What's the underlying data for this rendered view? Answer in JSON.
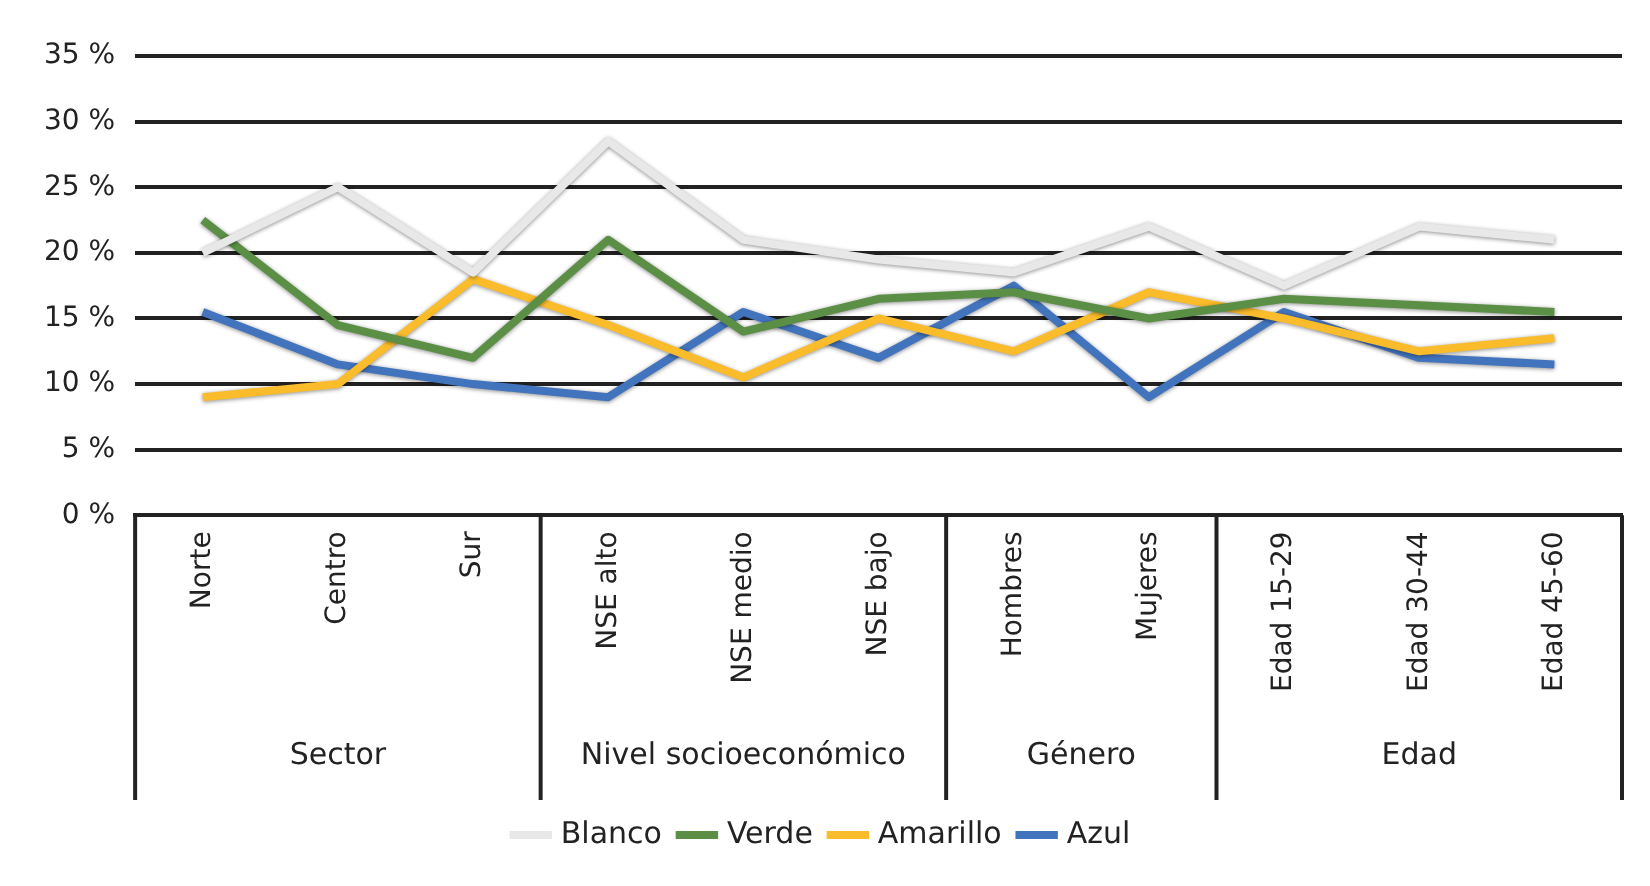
{
  "chart_data": {
    "type": "line",
    "categories": [
      "Norte",
      "Centro",
      "Sur",
      "NSE alto",
      "NSE medio",
      "NSE bajo",
      "Hombres",
      "Mujeres",
      "Edad 15-29",
      "Edad 30-44",
      "Edad 45-60"
    ],
    "annotations": [
      "Sector",
      "Nivel socioeconómico",
      "Género",
      "Edad"
    ],
    "series": [
      {
        "name": "Blanco",
        "color": "#e8e8e8",
        "values": [
          20,
          25,
          18.5,
          28.5,
          21,
          19.5,
          18.5,
          22,
          17.5,
          22,
          21
        ]
      },
      {
        "name": "Verde",
        "color": "#5b8f45",
        "values": [
          22.5,
          14.5,
          12,
          21,
          14,
          16.5,
          17,
          15,
          16.5,
          16,
          15.5
        ]
      },
      {
        "name": "Amarillo",
        "color": "#fbbc2c",
        "values": [
          9,
          10,
          18,
          14.5,
          10.5,
          15,
          12.5,
          17,
          15,
          12.5,
          13.5
        ]
      },
      {
        "name": "Azul",
        "color": "#4274be",
        "values": [
          15.5,
          11.5,
          10,
          9,
          15.5,
          12,
          17.5,
          9,
          15.5,
          12,
          11.5
        ]
      }
    ],
    "ylim": [
      0,
      35
    ],
    "yticks": [
      {
        "value": 0,
        "label": "0 %"
      },
      {
        "value": 5,
        "label": "5 %"
      },
      {
        "value": 10,
        "label": "10 %"
      },
      {
        "value": 15,
        "label": "15 %"
      },
      {
        "value": 20,
        "label": "20 %"
      },
      {
        "value": 25,
        "label": "25 %"
      },
      {
        "value": 30,
        "label": "30 %"
      },
      {
        "value": 35,
        "label": "35 %"
      }
    ],
    "grid": "y",
    "legend": "bottom",
    "marker": "none",
    "line_style": "solid"
  }
}
